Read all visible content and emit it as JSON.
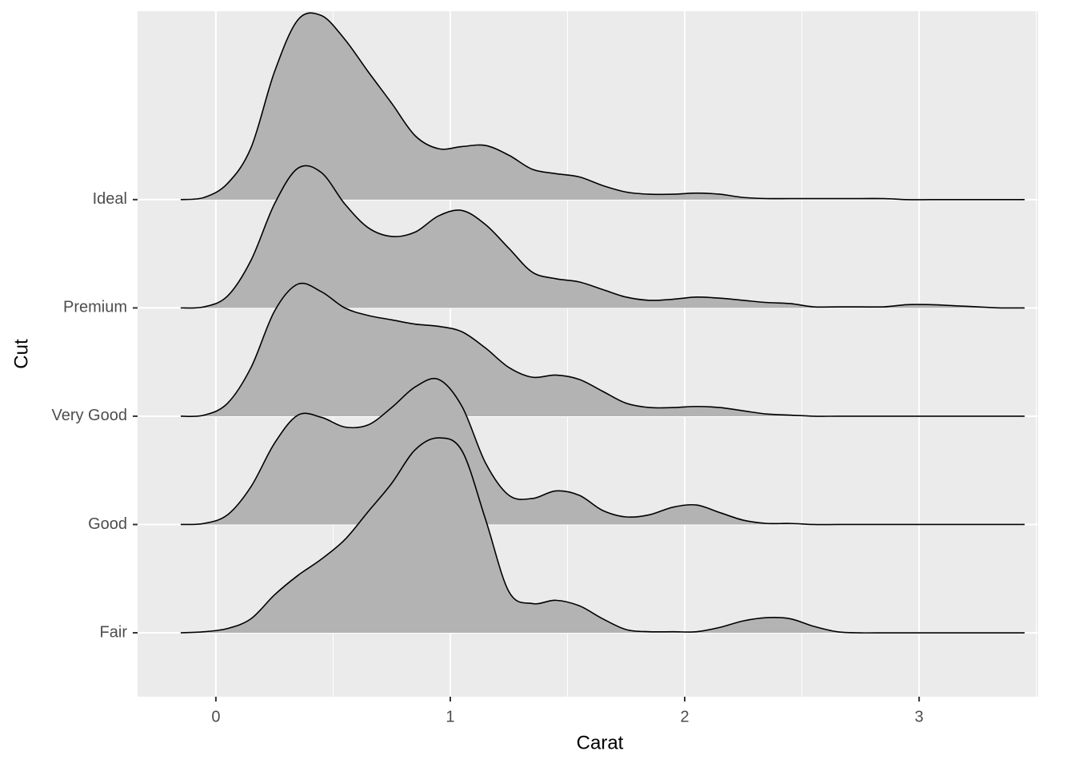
{
  "chart_data": {
    "type": "ridgeline",
    "x_label": "Carat",
    "y_label": "Cut",
    "categories": [
      "Fair",
      "Good",
      "Very Good",
      "Premium",
      "Ideal"
    ],
    "x": [
      -0.15,
      -0.05,
      0.05,
      0.15,
      0.25,
      0.35,
      0.45,
      0.55,
      0.65,
      0.75,
      0.85,
      0.95,
      1.05,
      1.15,
      1.25,
      1.35,
      1.45,
      1.55,
      1.65,
      1.75,
      1.85,
      1.95,
      2.05,
      2.15,
      2.25,
      2.35,
      2.45,
      2.55,
      2.65,
      2.75,
      2.85,
      2.95,
      3.05,
      3.15,
      3.25,
      3.35,
      3.45
    ],
    "series": [
      {
        "name": "Fair",
        "color": "#b3b3b3",
        "values": [
          0,
          0.01,
          0.04,
          0.13,
          0.35,
          0.53,
          0.68,
          0.86,
          1.12,
          1.38,
          1.69,
          1.8,
          1.68,
          1.05,
          0.38,
          0.27,
          0.3,
          0.25,
          0.13,
          0.03,
          0.01,
          0.01,
          0.01,
          0.05,
          0.11,
          0.14,
          0.13,
          0.06,
          0.01,
          0,
          0,
          0,
          0,
          0,
          0,
          0,
          0
        ]
      },
      {
        "name": "Good",
        "color": "#b3b3b3",
        "values": [
          0,
          0.01,
          0.09,
          0.35,
          0.75,
          1.01,
          0.99,
          0.9,
          0.92,
          1.08,
          1.27,
          1.34,
          1.09,
          0.57,
          0.27,
          0.24,
          0.31,
          0.27,
          0.13,
          0.07,
          0.09,
          0.16,
          0.18,
          0.11,
          0.04,
          0.01,
          0.01,
          0,
          0,
          0,
          0,
          0,
          0,
          0,
          0,
          0,
          0
        ]
      },
      {
        "name": "Very Good",
        "color": "#b3b3b3",
        "values": [
          0,
          0.01,
          0.12,
          0.45,
          0.97,
          1.22,
          1.15,
          1.0,
          0.93,
          0.89,
          0.85,
          0.83,
          0.78,
          0.63,
          0.45,
          0.36,
          0.38,
          0.34,
          0.23,
          0.12,
          0.08,
          0.08,
          0.09,
          0.08,
          0.05,
          0.02,
          0.01,
          0,
          0,
          0,
          0,
          0,
          0,
          0,
          0,
          0,
          0
        ]
      },
      {
        "name": "Premium",
        "color": "#b3b3b3",
        "values": [
          0,
          0.01,
          0.11,
          0.44,
          0.96,
          1.29,
          1.25,
          0.96,
          0.74,
          0.66,
          0.7,
          0.85,
          0.9,
          0.77,
          0.55,
          0.33,
          0.27,
          0.24,
          0.17,
          0.1,
          0.07,
          0.08,
          0.1,
          0.09,
          0.07,
          0.05,
          0.04,
          0.01,
          0.01,
          0.01,
          0.01,
          0.03,
          0.03,
          0.02,
          0.01,
          0,
          0
        ]
      },
      {
        "name": "Ideal",
        "color": "#b3b3b3",
        "values": [
          0,
          0.02,
          0.15,
          0.48,
          1.18,
          1.66,
          1.7,
          1.48,
          1.18,
          0.89,
          0.59,
          0.47,
          0.49,
          0.5,
          0.41,
          0.28,
          0.24,
          0.21,
          0.13,
          0.07,
          0.05,
          0.05,
          0.06,
          0.05,
          0.02,
          0.01,
          0.01,
          0.01,
          0.01,
          0.01,
          0.01,
          0,
          0,
          0,
          0,
          0,
          0
        ]
      }
    ],
    "xlim": [
      -0.334,
      3.508
    ],
    "xticks": [
      0,
      1,
      2,
      3
    ],
    "xminor": [
      0.5,
      1.5,
      2.5,
      3.5
    ],
    "ylim": [
      -0.59,
      5.74
    ],
    "grid": true
  }
}
